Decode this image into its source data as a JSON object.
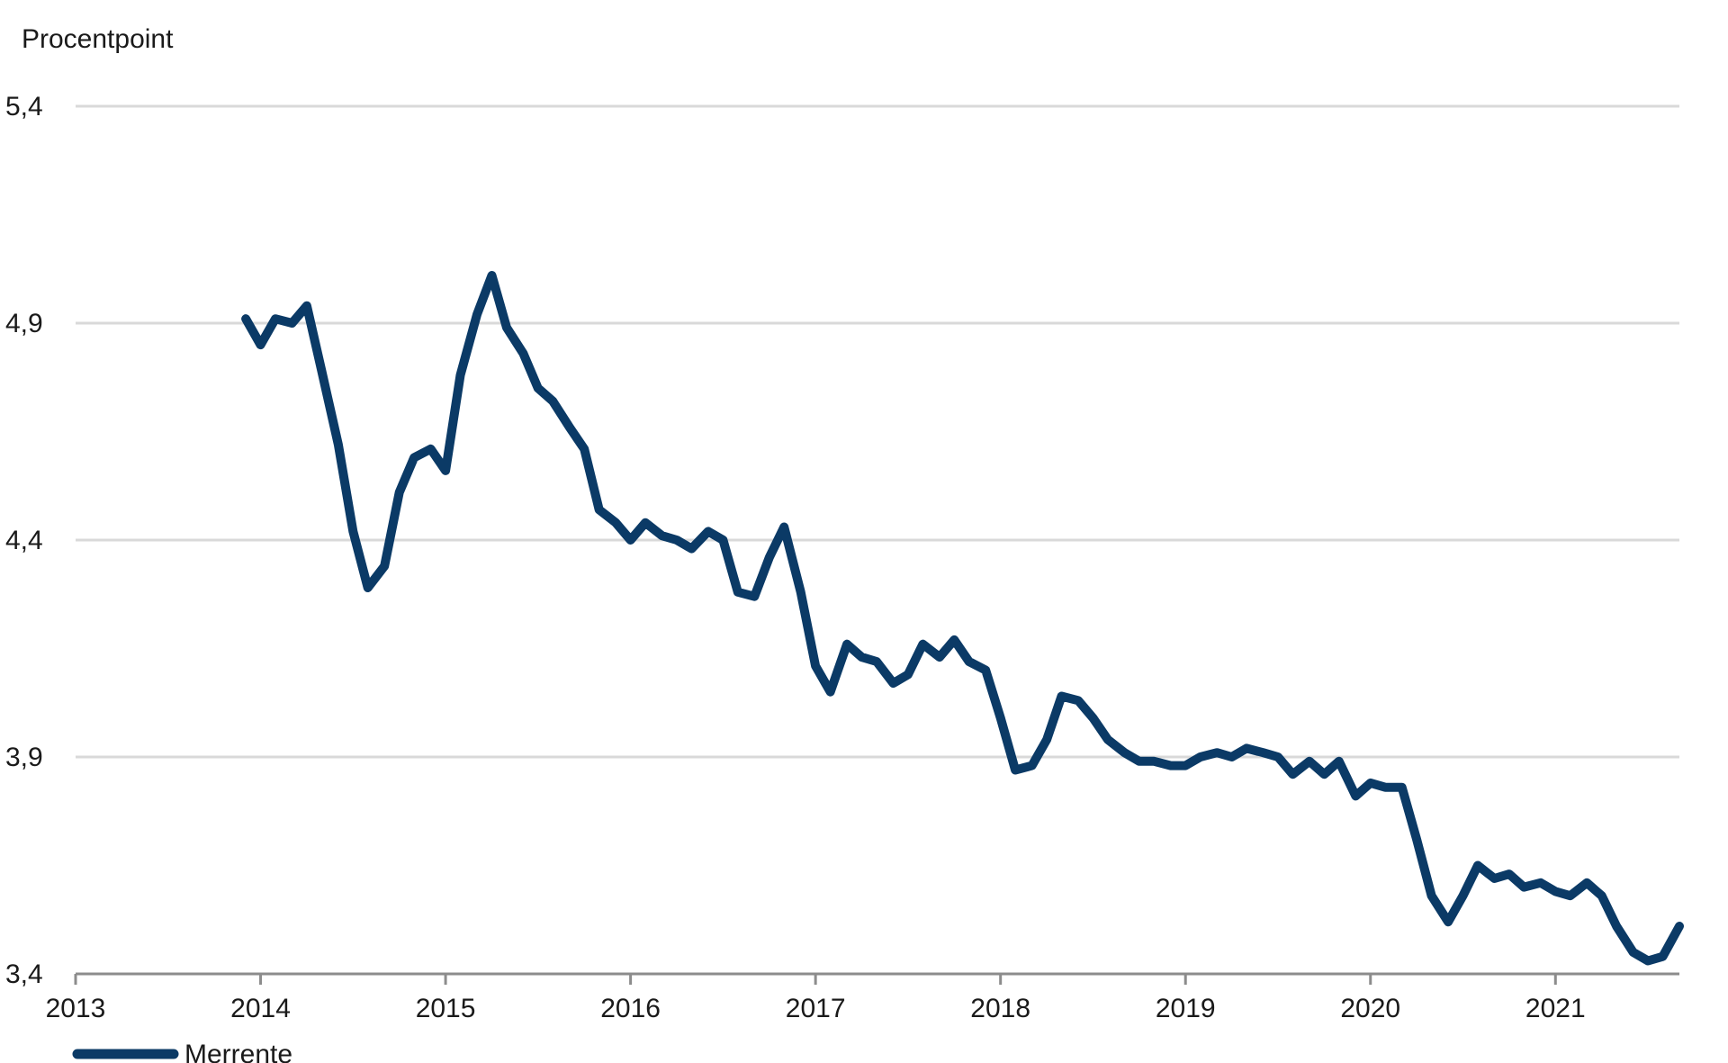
{
  "chart_data": {
    "type": "line",
    "title": "",
    "ylabel": "Procentpoint",
    "xlabel": "",
    "ylim": [
      3.4,
      5.4
    ],
    "yticks": [
      "5,4",
      "4,9",
      "4,4",
      "3,9",
      "3,4"
    ],
    "ytick_values": [
      5.4,
      4.9,
      4.4,
      3.9,
      3.4
    ],
    "xlim": [
      2013,
      2021.67
    ],
    "xticks": [
      "2013",
      "2014",
      "2015",
      "2016",
      "2017",
      "2018",
      "2019",
      "2020",
      "2021"
    ],
    "xtick_values": [
      2013,
      2014,
      2015,
      2016,
      2017,
      2018,
      2019,
      2020,
      2021
    ],
    "grid": true,
    "legend_position": "bottom-left",
    "colors": {
      "series": "#0b3a66",
      "grid": "#d9d9d9",
      "axis": "#8c8c8c"
    },
    "series": [
      {
        "name": "Merrente",
        "x": [
          2013.92,
          2014.0,
          2014.08,
          2014.17,
          2014.25,
          2014.33,
          2014.42,
          2014.5,
          2014.58,
          2014.67,
          2014.75,
          2014.83,
          2014.92,
          2015.0,
          2015.08,
          2015.17,
          2015.25,
          2015.33,
          2015.42,
          2015.5,
          2015.58,
          2015.67,
          2015.75,
          2015.83,
          2015.92,
          2016.0,
          2016.08,
          2016.17,
          2016.25,
          2016.33,
          2016.42,
          2016.5,
          2016.58,
          2016.67,
          2016.75,
          2016.83,
          2016.92,
          2017.0,
          2017.08,
          2017.17,
          2017.25,
          2017.33,
          2017.42,
          2017.5,
          2017.58,
          2017.67,
          2017.75,
          2017.83,
          2017.92,
          2018.0,
          2018.08,
          2018.17,
          2018.25,
          2018.33,
          2018.42,
          2018.5,
          2018.58,
          2018.67,
          2018.75,
          2018.83,
          2018.92,
          2019.0,
          2019.08,
          2019.17,
          2019.25,
          2019.33,
          2019.42,
          2019.5,
          2019.58,
          2019.67,
          2019.75,
          2019.83,
          2019.92,
          2020.0,
          2020.08,
          2020.17,
          2020.25,
          2020.33,
          2020.42,
          2020.5,
          2020.58,
          2020.67,
          2020.75,
          2020.83,
          2020.92,
          2021.0,
          2021.08,
          2021.17,
          2021.25,
          2021.33,
          2021.42,
          2021.5,
          2021.58,
          2021.67
        ],
        "y": [
          4.91,
          4.85,
          4.91,
          4.9,
          4.94,
          4.79,
          4.62,
          4.42,
          4.29,
          4.34,
          4.51,
          4.59,
          4.61,
          4.56,
          4.78,
          4.92,
          5.01,
          4.89,
          4.83,
          4.75,
          4.72,
          4.66,
          4.61,
          4.47,
          4.44,
          4.4,
          4.44,
          4.41,
          4.4,
          4.38,
          4.42,
          4.4,
          4.28,
          4.27,
          4.36,
          4.43,
          4.28,
          4.11,
          4.05,
          4.16,
          4.13,
          4.12,
          4.07,
          4.09,
          4.16,
          4.13,
          4.17,
          4.12,
          4.1,
          3.99,
          3.87,
          3.88,
          3.94,
          4.04,
          4.03,
          3.99,
          3.94,
          3.91,
          3.89,
          3.89,
          3.88,
          3.88,
          3.9,
          3.91,
          3.9,
          3.92,
          3.91,
          3.9,
          3.86,
          3.89,
          3.86,
          3.89,
          3.81,
          3.84,
          3.83,
          3.83,
          3.71,
          3.58,
          3.52,
          3.58,
          3.65,
          3.62,
          3.63,
          3.6,
          3.61,
          3.59,
          3.58,
          3.61,
          3.58,
          3.51,
          3.45,
          3.43,
          3.44,
          3.51
        ]
      }
    ]
  }
}
